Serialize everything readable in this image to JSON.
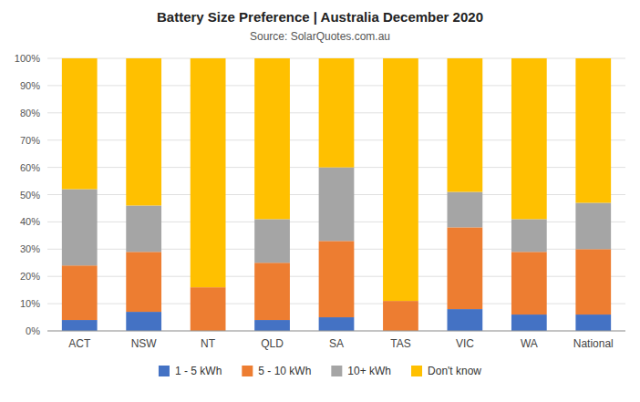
{
  "chart_data": {
    "type": "bar",
    "stacked": true,
    "title": "Battery Size Preference  |  Australia December 2020",
    "subtitle": "Source: SolarQuotes.com.au",
    "categories": [
      "ACT",
      "NSW",
      "NT",
      "QLD",
      "SA",
      "TAS",
      "VIC",
      "WA",
      "National"
    ],
    "series": [
      {
        "name": "1 - 5 kWh",
        "color": "#4472C4",
        "values": [
          4,
          7,
          0,
          4,
          5,
          0,
          8,
          6,
          6
        ]
      },
      {
        "name": "5 - 10 kWh",
        "color": "#ED7D31",
        "values": [
          20,
          22,
          16,
          21,
          28,
          11,
          30,
          23,
          24
        ]
      },
      {
        "name": "10+ kWh",
        "color": "#A5A5A5",
        "values": [
          28,
          17,
          0,
          16,
          27,
          0,
          13,
          12,
          17
        ]
      },
      {
        "name": "Don't know",
        "color": "#FFC000",
        "values": [
          48,
          54,
          84,
          59,
          40,
          89,
          49,
          59,
          53
        ]
      }
    ],
    "ylim": [
      0,
      100
    ],
    "yticks": [
      {
        "value": 0,
        "label": "0%"
      },
      {
        "value": 10,
        "label": "10%"
      },
      {
        "value": 20,
        "label": "20%"
      },
      {
        "value": 30,
        "label": "30%"
      },
      {
        "value": 40,
        "label": "40%"
      },
      {
        "value": 50,
        "label": "50%"
      },
      {
        "value": 60,
        "label": "60%"
      },
      {
        "value": 70,
        "label": "70%"
      },
      {
        "value": 80,
        "label": "80%"
      },
      {
        "value": 90,
        "label": "90%"
      },
      {
        "value": 100,
        "label": "100%"
      }
    ],
    "grid": true,
    "legend": "bottom"
  }
}
